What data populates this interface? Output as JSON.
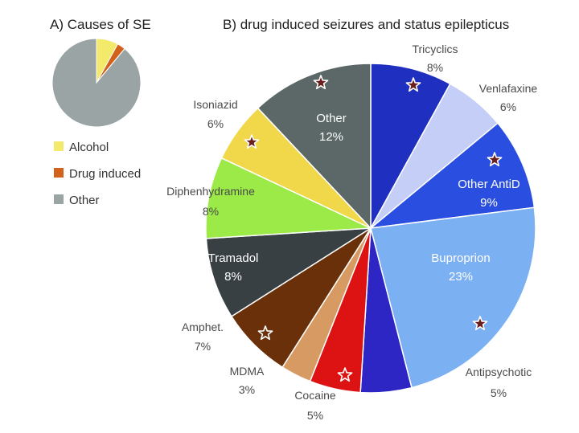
{
  "chart_data": [
    {
      "panel": "A",
      "type": "pie",
      "title": "A) Causes of SE",
      "slices": [
        {
          "label": "Alcohol",
          "value": 8,
          "color": "#f3e96b"
        },
        {
          "label": "Drug induced",
          "value": 3,
          "color": "#d2611c"
        },
        {
          "label": "Other",
          "value": 89,
          "color": "#9aa4a4"
        }
      ],
      "legend": "below"
    },
    {
      "panel": "B",
      "type": "pie",
      "title": "B) drug induced seizures and status epilepticus",
      "slices": [
        {
          "label": "Tricyclics",
          "value": 8,
          "value_text": "8%",
          "color": "#1f2fbf",
          "star": "filled",
          "label_pos": "outside"
        },
        {
          "label": "Venlafaxine",
          "value": 6,
          "value_text": "6%",
          "color": "#c4cef6",
          "star": "none",
          "label_pos": "outside"
        },
        {
          "label": "Other AntiD",
          "value": 9,
          "value_text": "9%",
          "color": "#2a4fe0",
          "star": "filled",
          "label_pos": "inside"
        },
        {
          "label": "Buproprion",
          "value": 23,
          "value_text": "23%",
          "color": "#7bb0f3",
          "star": "filled",
          "label_pos": "inside"
        },
        {
          "label": "Antipsychotic",
          "value": 5,
          "value_text": "5%",
          "color": "#2d25c4",
          "star": "none",
          "label_pos": "outside"
        },
        {
          "label": "Cocaine",
          "value": 5,
          "value_text": "5%",
          "color": "#dd1212",
          "star": "outline",
          "label_pos": "outside"
        },
        {
          "label": "MDMA",
          "value": 3,
          "value_text": "3%",
          "color": "#d89a63",
          "star": "none",
          "label_pos": "outside"
        },
        {
          "label": "Amphet.",
          "value": 7,
          "value_text": "7%",
          "color": "#6a300a",
          "star": "outline",
          "label_pos": "outside"
        },
        {
          "label": "Tramadol",
          "value": 8,
          "value_text": "8%",
          "color": "#384044",
          "star": "none",
          "label_pos": "inside"
        },
        {
          "label": "Diphenhydramine",
          "value": 8,
          "value_text": "8%",
          "color": "#9bea48",
          "star": "none",
          "label_pos": "outside"
        },
        {
          "label": "Isoniazid",
          "value": 6,
          "value_text": "6%",
          "color": "#f0d84a",
          "star": "filled",
          "label_pos": "outside"
        },
        {
          "label": "Other",
          "value": 12,
          "value_text": "12%",
          "color": "#5c6767",
          "star": "filled",
          "label_pos": "inside"
        }
      ],
      "star_color_filled": "#6a1f1f",
      "star_color_outline": "#ffffff"
    }
  ]
}
